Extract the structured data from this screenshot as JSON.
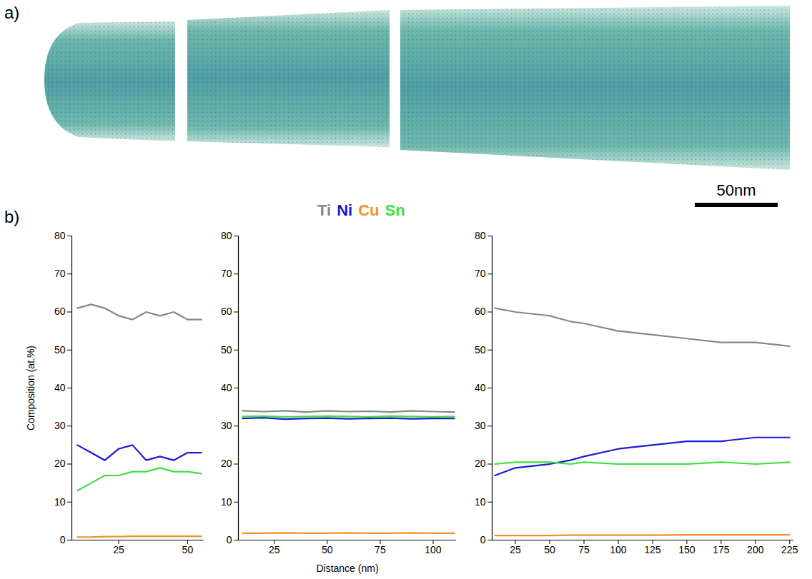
{
  "figure": {
    "image_label": "a)",
    "chart_label": "b)",
    "scale_bar_label": "50nm",
    "legend": "top"
  },
  "chart_data": [
    {
      "type": "line",
      "ylabel": "Composition (at.%)",
      "x": [
        10,
        15,
        20,
        25,
        30,
        35,
        40,
        45,
        50,
        55
      ],
      "series": [
        {
          "name": "Ti",
          "color": "#888888",
          "values": [
            61,
            62,
            61,
            59,
            58,
            60,
            59,
            60,
            58,
            58
          ]
        },
        {
          "name": "Ni",
          "color": "#1a1ad6",
          "values": [
            25,
            23,
            21,
            24,
            25,
            21,
            22,
            21,
            23,
            23
          ]
        },
        {
          "name": "Cu",
          "color": "#f5902a",
          "values": [
            0.8,
            0.8,
            0.9,
            0.9,
            1,
            1,
            1,
            1,
            1,
            1
          ]
        },
        {
          "name": "Sn",
          "color": "#3ee03e",
          "values": [
            13,
            15,
            17,
            17,
            18,
            18,
            19,
            18,
            18,
            17.5
          ]
        }
      ],
      "xlim": [
        8,
        56
      ],
      "ylim": [
        0,
        80
      ],
      "xticks": [
        25,
        50
      ],
      "yticks": [
        0,
        10,
        20,
        30,
        40,
        50,
        60,
        70,
        80
      ]
    },
    {
      "type": "line",
      "xlabel": "Distance (nm)",
      "x": [
        10,
        20,
        30,
        40,
        50,
        60,
        70,
        80,
        90,
        100,
        110
      ],
      "series": [
        {
          "name": "Ti",
          "color": "#888888",
          "values": [
            34,
            33.8,
            34,
            33.7,
            34,
            33.8,
            33.9,
            33.7,
            34,
            33.8,
            33.7
          ]
        },
        {
          "name": "Ni",
          "color": "#1a1ad6",
          "values": [
            32,
            32.2,
            31.8,
            32,
            32.1,
            31.9,
            32,
            32.1,
            31.9,
            32,
            32
          ]
        },
        {
          "name": "Cu",
          "color": "#f5902a",
          "values": [
            1.8,
            1.8,
            1.9,
            1.8,
            1.8,
            1.9,
            1.8,
            1.8,
            1.9,
            1.8,
            1.8
          ]
        },
        {
          "name": "Sn",
          "color": "#3ee03e",
          "values": [
            32.5,
            32.6,
            32.4,
            32.5,
            32.6,
            32.5,
            32.4,
            32.6,
            32.5,
            32.4,
            32.5
          ]
        }
      ],
      "xlim": [
        8,
        111
      ],
      "ylim": [
        0,
        80
      ],
      "xticks": [
        25,
        50,
        75,
        100
      ],
      "yticks": [
        0,
        10,
        20,
        30,
        40,
        50,
        60,
        70,
        80
      ]
    },
    {
      "type": "line",
      "x": [
        10,
        25,
        50,
        65,
        75,
        100,
        125,
        150,
        175,
        200,
        225
      ],
      "series": [
        {
          "name": "Ti",
          "color": "#888888",
          "values": [
            61,
            60,
            59,
            57.5,
            57,
            55,
            54,
            53,
            52,
            52,
            51
          ]
        },
        {
          "name": "Ni",
          "color": "#1a1ad6",
          "values": [
            17,
            19,
            20,
            21,
            22,
            24,
            25,
            26,
            26,
            27,
            27
          ]
        },
        {
          "name": "Cu",
          "color": "#f5902a",
          "values": [
            1.2,
            1.2,
            1.2,
            1.3,
            1.3,
            1.3,
            1.3,
            1.4,
            1.4,
            1.4,
            1.4
          ]
        },
        {
          "name": "Sn",
          "color": "#3ee03e",
          "values": [
            20,
            20.5,
            20.5,
            20,
            20.5,
            20,
            20,
            20,
            20.5,
            20,
            20.5
          ]
        }
      ],
      "xlim": [
        8,
        228
      ],
      "ylim": [
        0,
        80
      ],
      "xticks": [
        25,
        50,
        75,
        100,
        125,
        150,
        175,
        200,
        225
      ],
      "yticks": [
        0,
        10,
        20,
        30,
        40,
        50,
        60,
        70,
        80
      ]
    }
  ]
}
